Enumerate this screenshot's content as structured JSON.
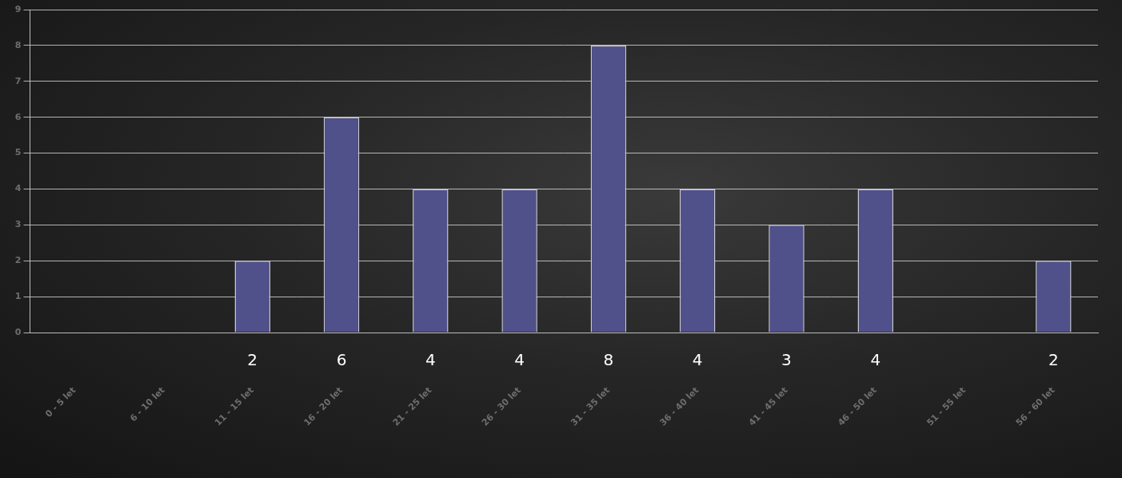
{
  "chart_data": {
    "type": "bar",
    "categories": [
      "0 - 5 let",
      "6 - 10 let",
      "11 - 15 let",
      "16 - 20 let",
      "21 - 25 let",
      "26 - 30 let",
      "31 - 35 let",
      "36 - 40 let",
      "41 - 45 let",
      "46 - 50 let",
      "51 - 55 let",
      "56 - 60 let"
    ],
    "values": [
      null,
      null,
      2,
      6,
      4,
      4,
      8,
      4,
      3,
      4,
      null,
      2
    ],
    "color": "#50508a",
    "ylim": [
      0,
      9
    ],
    "yticks": [
      0,
      1,
      2,
      3,
      4,
      5,
      6,
      7,
      8,
      9
    ],
    "grid": true,
    "data_labels": true
  }
}
